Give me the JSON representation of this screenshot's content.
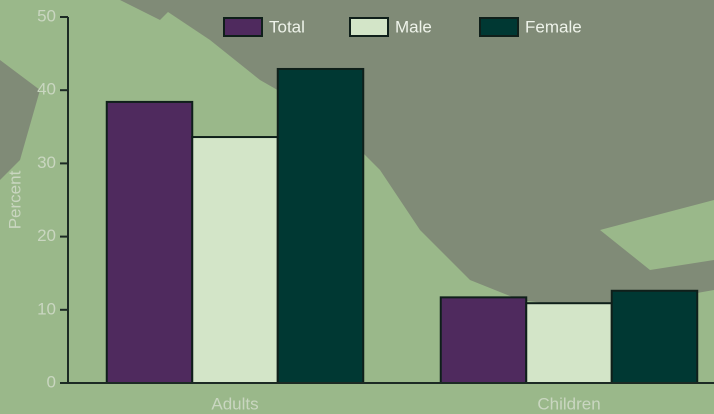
{
  "chart_data": {
    "type": "bar",
    "categories": [
      "Adults",
      "Children"
    ],
    "series": [
      {
        "name": "Total",
        "color": "#4f2a5e",
        "values": [
          38.4,
          11.7
        ]
      },
      {
        "name": "Male",
        "color": "#d3e5c8",
        "values": [
          33.6,
          10.9
        ]
      },
      {
        "name": "Female",
        "color": "#003833",
        "values": [
          42.9,
          12.6
        ]
      }
    ],
    "ylabel": "Percent",
    "ylim": [
      0,
      50
    ],
    "yticks": [
      0,
      10,
      20,
      30,
      40,
      50
    ],
    "legend": "top"
  }
}
